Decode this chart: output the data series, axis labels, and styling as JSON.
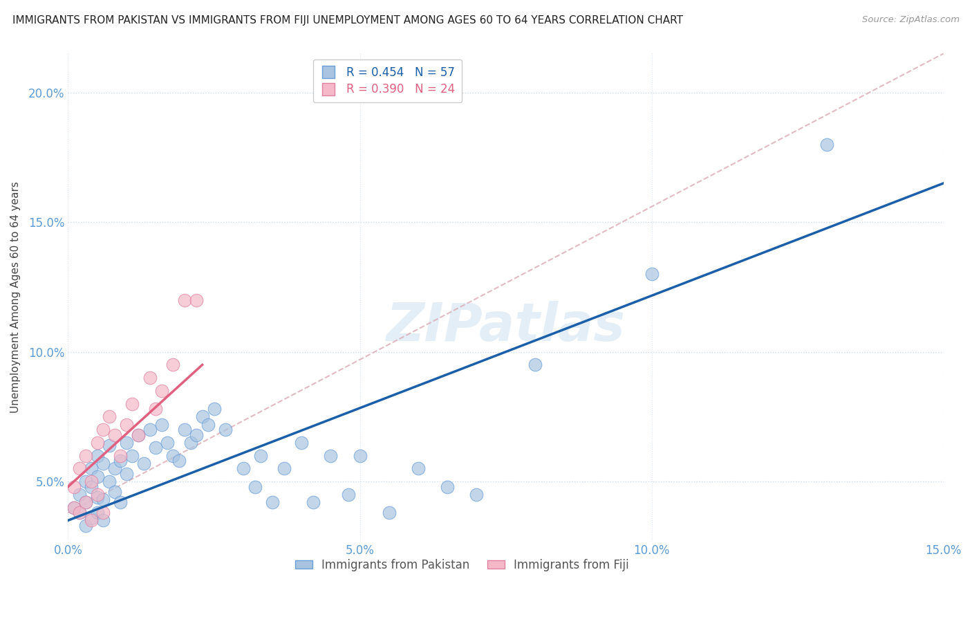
{
  "title": "IMMIGRANTS FROM PAKISTAN VS IMMIGRANTS FROM FIJI UNEMPLOYMENT AMONG AGES 60 TO 64 YEARS CORRELATION CHART",
  "source": "Source: ZipAtlas.com",
  "ylabel": "Unemployment Among Ages 60 to 64 years",
  "legend_label_blue": "Immigrants from Pakistan",
  "legend_label_pink": "Immigrants from Fiji",
  "legend_r_blue": "R = 0.454",
  "legend_n_blue": "N = 57",
  "legend_r_pink": "R = 0.390",
  "legend_n_pink": "N = 24",
  "xlim": [
    0.0,
    0.15
  ],
  "ylim": [
    0.027,
    0.215
  ],
  "xticks": [
    0.0,
    0.05,
    0.1,
    0.15
  ],
  "yticks": [
    0.05,
    0.1,
    0.15,
    0.2
  ],
  "xtick_labels": [
    "0.0%",
    "5.0%",
    "10.0%",
    "15.0%"
  ],
  "ytick_labels": [
    "5.0%",
    "10.0%",
    "15.0%",
    "20.0%"
  ],
  "color_blue": "#a8c4e0",
  "color_blue_edge": "#6a9fd8",
  "color_blue_line": "#1a5fa8",
  "color_pink": "#f4b8c8",
  "color_pink_edge": "#e080a0",
  "color_pink_line": "#e06080",
  "color_diag_line": "#dbb0b8",
  "watermark": "ZIPatlas",
  "pakistan_x": [
    0.001,
    0.002,
    0.002,
    0.003,
    0.003,
    0.003,
    0.004,
    0.004,
    0.004,
    0.005,
    0.005,
    0.005,
    0.005,
    0.006,
    0.006,
    0.006,
    0.007,
    0.007,
    0.008,
    0.008,
    0.009,
    0.009,
    0.01,
    0.01,
    0.011,
    0.012,
    0.013,
    0.014,
    0.015,
    0.016,
    0.017,
    0.018,
    0.019,
    0.02,
    0.021,
    0.022,
    0.023,
    0.024,
    0.025,
    0.027,
    0.03,
    0.032,
    0.033,
    0.035,
    0.037,
    0.04,
    0.042,
    0.045,
    0.048,
    0.05,
    0.055,
    0.06,
    0.065,
    0.07,
    0.08,
    0.1,
    0.13
  ],
  "pakistan_y": [
    0.04,
    0.038,
    0.045,
    0.042,
    0.05,
    0.033,
    0.036,
    0.048,
    0.055,
    0.044,
    0.052,
    0.038,
    0.06,
    0.043,
    0.057,
    0.035,
    0.05,
    0.064,
    0.046,
    0.055,
    0.058,
    0.042,
    0.053,
    0.065,
    0.06,
    0.068,
    0.057,
    0.07,
    0.063,
    0.072,
    0.065,
    0.06,
    0.058,
    0.07,
    0.065,
    0.068,
    0.075,
    0.072,
    0.078,
    0.07,
    0.055,
    0.048,
    0.06,
    0.042,
    0.055,
    0.065,
    0.042,
    0.06,
    0.045,
    0.06,
    0.038,
    0.055,
    0.048,
    0.045,
    0.095,
    0.13,
    0.18
  ],
  "fiji_x": [
    0.001,
    0.001,
    0.002,
    0.002,
    0.003,
    0.003,
    0.004,
    0.004,
    0.005,
    0.005,
    0.006,
    0.006,
    0.007,
    0.008,
    0.009,
    0.01,
    0.011,
    0.012,
    0.014,
    0.015,
    0.016,
    0.018,
    0.02,
    0.022
  ],
  "fiji_y": [
    0.04,
    0.048,
    0.038,
    0.055,
    0.042,
    0.06,
    0.05,
    0.035,
    0.065,
    0.045,
    0.07,
    0.038,
    0.075,
    0.068,
    0.06,
    0.072,
    0.08,
    0.068,
    0.09,
    0.078,
    0.085,
    0.095,
    0.12,
    0.12
  ],
  "blue_line_x": [
    0.0,
    0.15
  ],
  "blue_line_y": [
    0.035,
    0.165
  ],
  "pink_line_x": [
    0.0,
    0.023
  ],
  "pink_line_y": [
    0.048,
    0.095
  ],
  "diag_line_x": [
    0.0,
    0.15
  ],
  "diag_line_y": [
    0.038,
    0.215
  ]
}
